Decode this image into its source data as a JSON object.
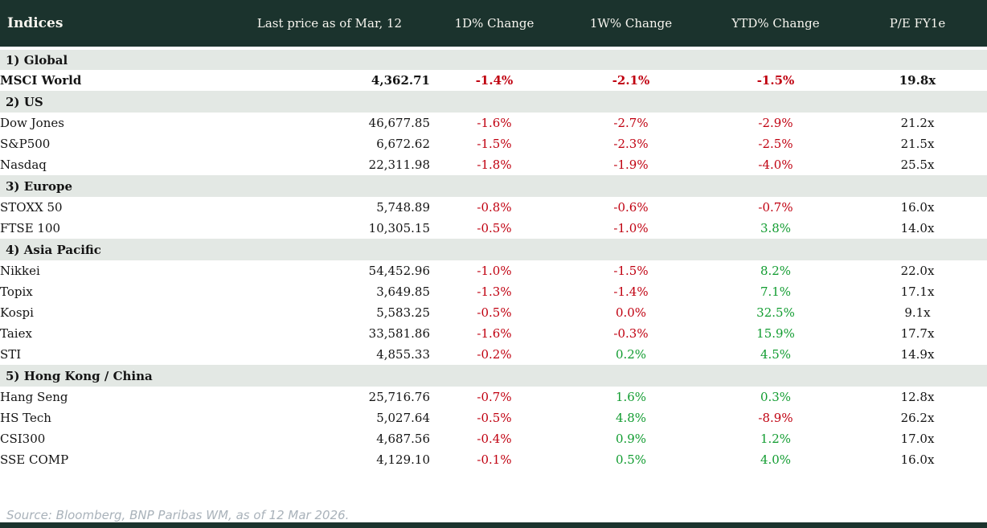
{
  "colors": {
    "header_bg": "#1b332d",
    "header_text": "#f7f5ef",
    "section_bg": "#e3e8e4",
    "negative": "#c00010",
    "positive": "#119c30",
    "body_text": "#141414",
    "source_text": "#a9b2ba"
  },
  "table": {
    "title": "Indices",
    "columns": {
      "last_price": "Last price as of Mar, 12",
      "d1": "1D% Change",
      "w1": "1W% Change",
      "ytd": "YTD% Change",
      "pe": "P/E FY1e"
    },
    "sections": [
      {
        "label": "1) Global",
        "rows": [
          {
            "name": "MSCI World",
            "bold": true,
            "last_price": "4,362.71",
            "changes": [
              {
                "text": "-1.4%",
                "color": "neg"
              },
              {
                "text": "-2.1%",
                "color": "neg"
              },
              {
                "text": "-1.5%",
                "color": "neg"
              }
            ],
            "pe": "19.8x"
          }
        ]
      },
      {
        "label": "2) US",
        "rows": [
          {
            "name": "Dow Jones",
            "bold": false,
            "last_price": "46,677.85",
            "changes": [
              {
                "text": "-1.6%",
                "color": "neg"
              },
              {
                "text": "-2.7%",
                "color": "neg"
              },
              {
                "text": "-2.9%",
                "color": "neg"
              }
            ],
            "pe": "21.2x"
          },
          {
            "name": "S&P500",
            "bold": false,
            "last_price": "6,672.62",
            "changes": [
              {
                "text": "-1.5%",
                "color": "neg"
              },
              {
                "text": "-2.3%",
                "color": "neg"
              },
              {
                "text": "-2.5%",
                "color": "neg"
              }
            ],
            "pe": "21.5x"
          },
          {
            "name": "Nasdaq",
            "bold": false,
            "last_price": "22,311.98",
            "changes": [
              {
                "text": "-1.8%",
                "color": "neg"
              },
              {
                "text": "-1.9%",
                "color": "neg"
              },
              {
                "text": "-4.0%",
                "color": "neg"
              }
            ],
            "pe": "25.5x"
          }
        ]
      },
      {
        "label": "3) Europe",
        "rows": [
          {
            "name": "STOXX 50",
            "bold": false,
            "last_price": "5,748.89",
            "changes": [
              {
                "text": "-0.8%",
                "color": "neg"
              },
              {
                "text": "-0.6%",
                "color": "neg"
              },
              {
                "text": "-0.7%",
                "color": "neg"
              }
            ],
            "pe": "16.0x"
          },
          {
            "name": "FTSE 100",
            "bold": false,
            "last_price": "10,305.15",
            "changes": [
              {
                "text": "-0.5%",
                "color": "neg"
              },
              {
                "text": "-1.0%",
                "color": "neg"
              },
              {
                "text": "3.8%",
                "color": "pos"
              }
            ],
            "pe": "14.0x"
          }
        ]
      },
      {
        "label": "4) Asia Pacific",
        "rows": [
          {
            "name": "Nikkei",
            "bold": false,
            "last_price": "54,452.96",
            "changes": [
              {
                "text": "-1.0%",
                "color": "neg"
              },
              {
                "text": "-1.5%",
                "color": "neg"
              },
              {
                "text": "8.2%",
                "color": "pos"
              }
            ],
            "pe": "22.0x"
          },
          {
            "name": "Topix",
            "bold": false,
            "last_price": "3,649.85",
            "changes": [
              {
                "text": "-1.3%",
                "color": "neg"
              },
              {
                "text": "-1.4%",
                "color": "neg"
              },
              {
                "text": "7.1%",
                "color": "pos"
              }
            ],
            "pe": "17.1x"
          },
          {
            "name": "Kospi",
            "bold": false,
            "last_price": "5,583.25",
            "changes": [
              {
                "text": "-0.5%",
                "color": "neg"
              },
              {
                "text": "0.0%",
                "color": "neg"
              },
              {
                "text": "32.5%",
                "color": "pos"
              }
            ],
            "pe": "9.1x"
          },
          {
            "name": "Taiex",
            "bold": false,
            "last_price": "33,581.86",
            "changes": [
              {
                "text": "-1.6%",
                "color": "neg"
              },
              {
                "text": "-0.3%",
                "color": "neg"
              },
              {
                "text": "15.9%",
                "color": "pos"
              }
            ],
            "pe": "17.7x"
          },
          {
            "name": "STI",
            "bold": false,
            "last_price": "4,855.33",
            "changes": [
              {
                "text": "-0.2%",
                "color": "neg"
              },
              {
                "text": "0.2%",
                "color": "pos"
              },
              {
                "text": "4.5%",
                "color": "pos"
              }
            ],
            "pe": "14.9x"
          }
        ]
      },
      {
        "label": "5) Hong Kong / China",
        "rows": [
          {
            "name": "Hang Seng",
            "bold": false,
            "last_price": "25,716.76",
            "changes": [
              {
                "text": "-0.7%",
                "color": "neg"
              },
              {
                "text": "1.6%",
                "color": "pos"
              },
              {
                "text": "0.3%",
                "color": "pos"
              }
            ],
            "pe": "12.8x"
          },
          {
            "name": "HS Tech",
            "bold": false,
            "last_price": "5,027.64",
            "changes": [
              {
                "text": "-0.5%",
                "color": "neg"
              },
              {
                "text": "4.8%",
                "color": "pos"
              },
              {
                "text": "-8.9%",
                "color": "neg"
              }
            ],
            "pe": "26.2x"
          },
          {
            "name": "CSI300",
            "bold": false,
            "last_price": "4,687.56",
            "changes": [
              {
                "text": "-0.4%",
                "color": "neg"
              },
              {
                "text": "0.9%",
                "color": "pos"
              },
              {
                "text": "1.2%",
                "color": "pos"
              }
            ],
            "pe": "17.0x"
          },
          {
            "name": "SSE COMP",
            "bold": false,
            "last_price": "4,129.10",
            "changes": [
              {
                "text": "-0.1%",
                "color": "neg"
              },
              {
                "text": "0.5%",
                "color": "pos"
              },
              {
                "text": "4.0%",
                "color": "pos"
              }
            ],
            "pe": "16.0x"
          }
        ]
      }
    ]
  },
  "footer": {
    "source": "Source: Bloomberg, BNP Paribas WM, as of 12 Mar 2026."
  },
  "chart_data": {
    "type": "table",
    "title": "Indices",
    "columns": [
      "Indices",
      "Last price as of Mar, 12",
      "1D% Change",
      "1W% Change",
      "YTD% Change",
      "P/E FY1e"
    ],
    "rows": [
      [
        "1) Global",
        "",
        "",
        "",
        "",
        ""
      ],
      [
        "MSCI World",
        4362.71,
        -1.4,
        -2.1,
        -1.5,
        19.8
      ],
      [
        "2) US",
        "",
        "",
        "",
        "",
        ""
      ],
      [
        "Dow Jones",
        46677.85,
        -1.6,
        -2.7,
        -2.9,
        21.2
      ],
      [
        "S&P500",
        6672.62,
        -1.5,
        -2.3,
        -2.5,
        21.5
      ],
      [
        "Nasdaq",
        22311.98,
        -1.8,
        -1.9,
        -4.0,
        25.5
      ],
      [
        "3) Europe",
        "",
        "",
        "",
        "",
        ""
      ],
      [
        "STOXX 50",
        5748.89,
        -0.8,
        -0.6,
        -0.7,
        16.0
      ],
      [
        "FTSE 100",
        10305.15,
        -0.5,
        -1.0,
        3.8,
        14.0
      ],
      [
        "4) Asia Pacific",
        "",
        "",
        "",
        "",
        ""
      ],
      [
        "Nikkei",
        54452.96,
        -1.0,
        -1.5,
        8.2,
        22.0
      ],
      [
        "Topix",
        3649.85,
        -1.3,
        -1.4,
        7.1,
        17.1
      ],
      [
        "Kospi",
        5583.25,
        -0.5,
        0.0,
        32.5,
        9.1
      ],
      [
        "Taiex",
        33581.86,
        -1.6,
        -0.3,
        15.9,
        17.7
      ],
      [
        "STI",
        4855.33,
        -0.2,
        0.2,
        4.5,
        14.9
      ],
      [
        "5) Hong Kong / China",
        "",
        "",
        "",
        "",
        ""
      ],
      [
        "Hang Seng",
        25716.76,
        -0.7,
        1.6,
        0.3,
        12.8
      ],
      [
        "HS Tech",
        5027.64,
        -0.5,
        4.8,
        -8.9,
        26.2
      ],
      [
        "CSI300",
        4687.56,
        -0.4,
        0.9,
        1.2,
        17.0
      ],
      [
        "SSE COMP",
        4129.1,
        -0.1,
        0.5,
        4.0,
        16.0
      ]
    ]
  }
}
